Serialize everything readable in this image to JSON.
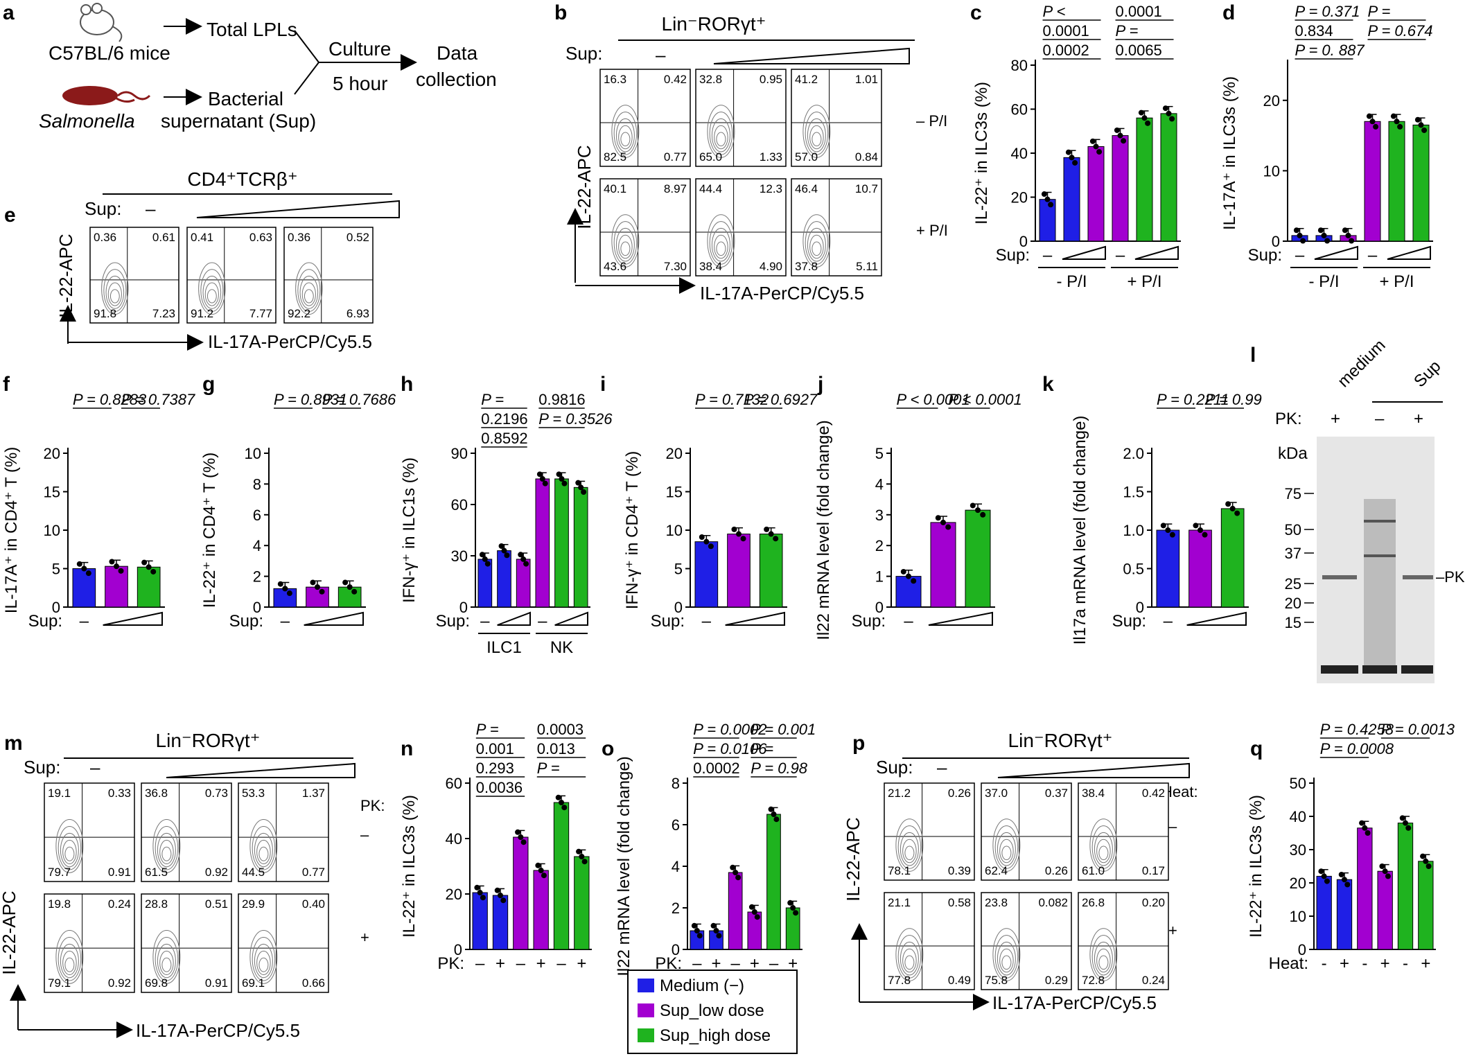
{
  "panels": {
    "a": {
      "label": "a",
      "mouse": "C57BL/6 mice",
      "total_lpl": "Total LPLs",
      "bacteria": "Salmonella",
      "bact_sup_line1": "Bacterial",
      "bact_sup_line2": "supernatant (Sup)",
      "culture_line1": "Culture",
      "culture_line2": "5 hour",
      "data_line1": "Data",
      "data_line2": "collection"
    },
    "b": {
      "label": "b",
      "gate": "Lin⁻RORγt⁺",
      "sup": "Sup:",
      "dash": "–",
      "yaxis": "IL-22-APC",
      "xaxis": "IL-17A-PerCP/Cy5.5",
      "row_minus": "– P/I",
      "row_plus": "+ P/I",
      "quadrants": [
        [
          "16.3",
          "0.42",
          "82.5",
          "0.77"
        ],
        [
          "32.8",
          "0.95",
          "65.0",
          "1.33"
        ],
        [
          "41.2",
          "1.01",
          "57.0",
          "0.84"
        ],
        [
          "40.1",
          "8.97",
          "43.6",
          "7.30"
        ],
        [
          "44.4",
          "12.3",
          "38.4",
          "4.90"
        ],
        [
          "46.4",
          "10.7",
          "37.8",
          "5.11"
        ]
      ]
    },
    "e": {
      "label": "e",
      "gate": "CD4⁺TCRβ⁺",
      "sup": "Sup:",
      "dash": "–",
      "yaxis": "IL-22-APC",
      "xaxis": "IL-17A-PerCP/Cy5.5",
      "quadrants": [
        [
          "0.36",
          "0.61",
          "91.8",
          "7.23"
        ],
        [
          "0.41",
          "0.63",
          "91.2",
          "7.77"
        ],
        [
          "0.36",
          "0.52",
          "92.2",
          "6.93"
        ]
      ]
    },
    "m": {
      "label": "m",
      "gate": "Lin⁻RORγt⁺",
      "sup": "Sup:",
      "dash": "–",
      "pk": "PK:",
      "row_minus": "–",
      "row_plus": "+",
      "yaxis": "IL-22-APC",
      "xaxis": "IL-17A-PerCP/Cy5.5",
      "quadrants": [
        [
          "19.1",
          "0.33",
          "79.7",
          "0.91"
        ],
        [
          "36.8",
          "0.73",
          "61.5",
          "0.92"
        ],
        [
          "53.3",
          "1.37",
          "44.5",
          "0.77"
        ],
        [
          "19.8",
          "0.24",
          "79.1",
          "0.92"
        ],
        [
          "28.8",
          "0.51",
          "69.8",
          "0.91"
        ],
        [
          "29.9",
          "0.40",
          "69.1",
          "0.66"
        ]
      ]
    },
    "p": {
      "label": "p",
      "gate": "Lin⁻RORγt⁺",
      "sup": "Sup:",
      "dash": "–",
      "heat": "Heat:",
      "row_minus": "–",
      "row_plus": "+",
      "yaxis": "IL-22-APC",
      "xaxis": "IL-17A-PerCP/Cy5.5",
      "quadrants": [
        [
          "21.2",
          "0.26",
          "78.1",
          "0.39"
        ],
        [
          "37.0",
          "0.37",
          "62.4",
          "0.26"
        ],
        [
          "38.4",
          "0.42",
          "61.0",
          "0.17"
        ],
        [
          "21.1",
          "0.58",
          "77.8",
          "0.49"
        ],
        [
          "23.8",
          "0.082",
          "75.8",
          "0.29"
        ],
        [
          "26.8",
          "0.20",
          "72.8",
          "0.24"
        ]
      ]
    },
    "l": {
      "label": "l",
      "medium": "medium",
      "sup": "Sup",
      "pk": "PK:",
      "plus": "+",
      "minus": "–",
      "kda": "kDa",
      "markers": [
        "75",
        "50",
        "37",
        "25",
        "20",
        "15"
      ],
      "pk_band": "–PK"
    },
    "legend": {
      "items": [
        "Medium (−)",
        "Sup_low dose",
        "Sup_high dose"
      ]
    }
  },
  "colors": {
    "blue": "#1f1fe6",
    "purple": "#a200d0",
    "green": "#1fb31f"
  },
  "chart_data": [
    {
      "panel": "c",
      "type": "bar",
      "ylabel": "IL-22⁺ in ILC3s (%)",
      "ylim": [
        0,
        80
      ],
      "yticks": [
        "0",
        "20",
        "40",
        "60",
        "80"
      ],
      "xlabel": "Sup:",
      "groups": [
        "- P/I",
        "+ P/I"
      ],
      "values": [
        19,
        38,
        43,
        48,
        56,
        58
      ],
      "pvalues": [
        "P <",
        "0.0001",
        "0.0001",
        "P =",
        "0.0002",
        "0.0065"
      ]
    },
    {
      "panel": "d",
      "type": "bar",
      "ylabel": "IL-17A⁺ in ILC3s (%)",
      "ylim": [
        0,
        25
      ],
      "yticks": [
        "0",
        "10",
        "20"
      ],
      "xlabel": "Sup:",
      "groups": [
        "- P/I",
        "+ P/I"
      ],
      "values": [
        0.8,
        0.8,
        0.8,
        17,
        17,
        16.5
      ],
      "pvalues": [
        "P = 0.371",
        "P =",
        "0.834",
        "P = 0.674",
        "P = 0. 887"
      ]
    },
    {
      "panel": "f",
      "type": "bar",
      "ylabel": "IL-17A⁺ in CD4⁺ T (%)",
      "ylim": [
        0,
        20
      ],
      "yticks": [
        "0",
        "5",
        "10",
        "15",
        "20"
      ],
      "xlabel": "Sup:",
      "values": [
        5.0,
        5.3,
        5.2
      ],
      "pvalues": [
        "P = 0.8283",
        "P = 0.7387"
      ]
    },
    {
      "panel": "g",
      "type": "bar",
      "ylabel": "IL-22⁺ in CD4⁺ T (%)",
      "ylim": [
        0,
        10
      ],
      "yticks": [
        "0",
        "2",
        "4",
        "6",
        "8",
        "10"
      ],
      "xlabel": "Sup:",
      "values": [
        1.2,
        1.3,
        1.3
      ],
      "pvalues": [
        "P = 0.8931",
        "P = 0.7686"
      ]
    },
    {
      "panel": "h",
      "type": "bar",
      "ylabel": "IFN-γ⁺ in ILC1s (%)",
      "ylim": [
        0,
        90
      ],
      "yticks": [
        "0",
        "30",
        "60",
        "90"
      ],
      "xlabel": "Sup:",
      "groups": [
        "ILC1",
        "NK"
      ],
      "values": [
        28,
        33,
        28,
        75,
        75,
        70
      ],
      "pvalues": [
        "P =",
        "0.9816",
        "0.2196",
        "P = 0.3526",
        "0.8592"
      ]
    },
    {
      "panel": "i",
      "type": "bar",
      "ylabel": "IFN-γ⁺ in CD4⁺ T (%)",
      "ylim": [
        0,
        20
      ],
      "yticks": [
        "0",
        "5",
        "10",
        "15",
        "20"
      ],
      "xlabel": "Sup:",
      "values": [
        8.5,
        9.5,
        9.5
      ],
      "pvalues": [
        "P = 0.7132",
        "P = 0.6927"
      ]
    },
    {
      "panel": "j",
      "type": "bar",
      "ylabel": "Il22 mRNA level (fold change)",
      "ylim": [
        0,
        5
      ],
      "yticks": [
        "0",
        "1",
        "2",
        "3",
        "4",
        "5"
      ],
      "xlabel": "Sup:",
      "values": [
        1.0,
        2.75,
        3.15
      ],
      "pvalues": [
        "P < 0.0001",
        "P < 0.0001"
      ]
    },
    {
      "panel": "k",
      "type": "bar",
      "ylabel": "Il17a mRNA level (fold change)",
      "ylim": [
        0,
        2.0
      ],
      "yticks": [
        "0",
        "0.5",
        "1.0",
        "1.5",
        "2.0"
      ],
      "xlabel": "Sup:",
      "values": [
        1.0,
        1.0,
        1.28
      ],
      "pvalues": [
        "P = 0.2211",
        "P = 0.99"
      ]
    },
    {
      "panel": "n",
      "type": "bar",
      "ylabel": "IL-22⁺ in ILC3s (%)",
      "ylim": [
        0,
        60
      ],
      "yticks": [
        "0",
        "20",
        "40",
        "60"
      ],
      "xlabel": "PK:",
      "xticks": [
        "–",
        "+",
        "–",
        "+",
        "–",
        "+"
      ],
      "values": [
        20.5,
        19.5,
        40.5,
        28.5,
        53,
        33.5
      ],
      "pvalues": [
        "P =",
        "0.0003",
        "0.001",
        "0.013",
        "0.293",
        "P =",
        "0.0036"
      ]
    },
    {
      "panel": "o",
      "type": "bar",
      "ylabel": "Il22 mRNA level (fold change)",
      "ylim": [
        0,
        8
      ],
      "yticks": [
        "0",
        "2",
        "4",
        "6",
        "8"
      ],
      "xlabel": "PK:",
      "xticks": [
        "–",
        "+",
        "–",
        "+",
        "–",
        "+"
      ],
      "values": [
        0.9,
        0.9,
        3.7,
        1.8,
        6.5,
        2.0
      ],
      "pvalues": [
        "P = 0.0002",
        "P = 0.001",
        "P = 0.0106",
        "P =",
        "0.0002",
        "P = 0.98"
      ]
    },
    {
      "panel": "q",
      "type": "bar",
      "ylabel": "IL-22⁺ in ILC3s (%)",
      "ylim": [
        0,
        50
      ],
      "yticks": [
        "0",
        "10",
        "20",
        "30",
        "40",
        "50"
      ],
      "xlabel": "Heat:",
      "xticks": [
        "-",
        "+",
        "-",
        "+",
        "-",
        "+"
      ],
      "values": [
        22,
        21,
        36.5,
        23.5,
        38,
        26.5
      ],
      "pvalues": [
        "P = 0.4258",
        "P = 0.0013",
        "P = 0.0008"
      ]
    }
  ]
}
